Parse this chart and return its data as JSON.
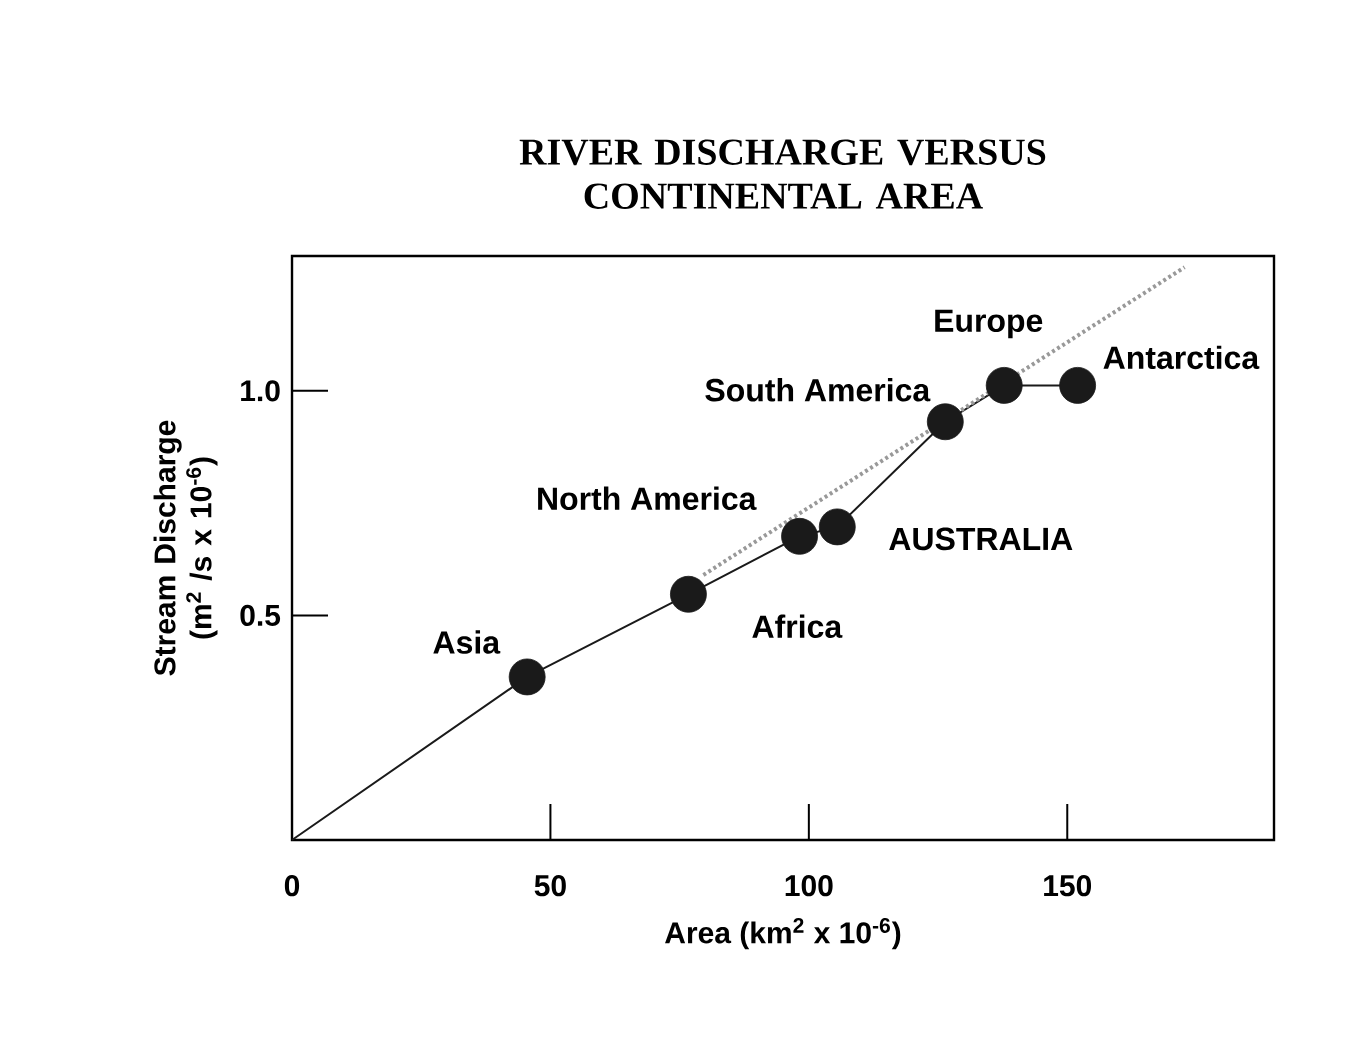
{
  "chart_data": {
    "type": "scatter",
    "title": "RIVER DISCHARGE VERSUS CONTINENTAL AREA",
    "xlabel": "Area (km$^{2}$ x 10$^{-6}$)",
    "ylabel": "Stream Discharge (m$^{2}$ /s x 10$^{-6}$)",
    "xlim": [
      0,
      190
    ],
    "ylim": [
      0,
      1.3
    ],
    "xticks": [
      0,
      50,
      100,
      150
    ],
    "yticks": [
      {
        "value": 0.5,
        "label": "0.5"
      },
      {
        "value": 1.0,
        "label": "1.0"
      }
    ],
    "series": [
      {
        "type": "line",
        "color": "#1a1a1a",
        "marker": "none",
        "line_style": "solid",
        "x": [
          0,
          45.5,
          76.7,
          98.2,
          105.5,
          126.4,
          137.8,
          152
        ],
        "values": [
          0,
          0.363,
          0.547,
          0.676,
          0.697,
          0.931,
          1.012,
          1.012
        ]
      },
      {
        "type": "line",
        "color": "#999999",
        "marker": "none",
        "line_style": "dotted",
        "x": [
          79.6,
          172.7
        ],
        "values": [
          0.59,
          1.275
        ]
      },
      {
        "color": "#1a1a1a",
        "marker": "circle",
        "x": [
          45.5,
          76.7,
          98.2,
          105.5,
          126.4,
          137.8,
          152
        ],
        "values": [
          0.363,
          0.547,
          0.676,
          0.697,
          0.931,
          1.012,
          1.012
        ]
      }
    ],
    "annotations": [
      {
        "text": "Asia",
        "x": 45.5,
        "y": 0.363
      },
      {
        "text": "Africa",
        "x": 76.7,
        "y": 0.547
      },
      {
        "text": "North America",
        "x": 98.2,
        "y": 0.676
      },
      {
        "text": "AUSTRALIA",
        "x": 105.5,
        "y": 0.697
      },
      {
        "text": "South America",
        "x": 126.4,
        "y": 0.931
      },
      {
        "text": "Europe",
        "x": 137.8,
        "y": 1.012
      },
      {
        "text": "Antarctica",
        "x": 152,
        "y": 1.012
      }
    ]
  }
}
